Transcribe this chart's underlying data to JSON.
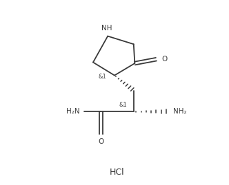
{
  "bg_color": "#ffffff",
  "line_color": "#3a3a3a",
  "text_color": "#3a3a3a",
  "figsize": [
    3.32,
    2.69
  ],
  "dpi": 100,
  "HCl_label": "HCl",
  "O_label1": "O",
  "O_label2": "O",
  "NH2_label1": "H₂N",
  "NH2_label2": "NH₂",
  "NH_label": "NH",
  "stereo1": "&1",
  "stereo2": "&1"
}
